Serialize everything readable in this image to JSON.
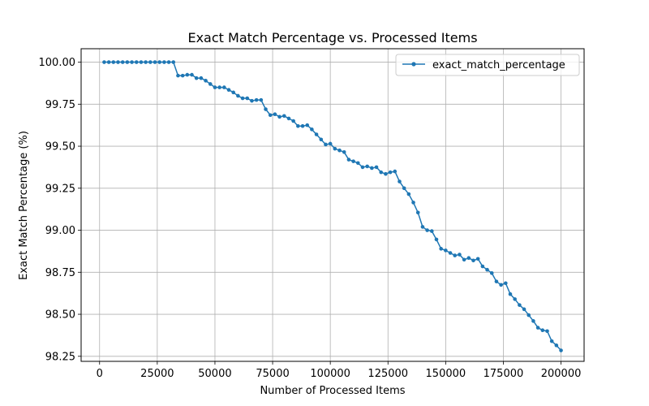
{
  "chart_data": {
    "type": "line",
    "title": "Exact Match Percentage vs. Processed Items",
    "xlabel": "Number of Processed Items",
    "ylabel": "Exact Match Percentage (%)",
    "xlim": [
      -8000,
      210000
    ],
    "ylim": [
      98.22,
      100.08
    ],
    "xticks": [
      0,
      25000,
      50000,
      75000,
      100000,
      125000,
      150000,
      175000,
      200000
    ],
    "xtick_labels": [
      "0",
      "25000",
      "50000",
      "75000",
      "100000",
      "125000",
      "150000",
      "175000",
      "200000"
    ],
    "yticks": [
      98.25,
      98.5,
      98.75,
      99.0,
      99.25,
      99.5,
      99.75,
      100.0
    ],
    "ytick_labels": [
      "98.25",
      "98.50",
      "98.75",
      "99.00",
      "99.25",
      "99.50",
      "99.75",
      "100.00"
    ],
    "grid": true,
    "legend_position": "top-right",
    "colors": {
      "series": "#1f77b4",
      "grid": "#b0b0b0",
      "axis": "#000000"
    },
    "series": [
      {
        "name": "exact_match_percentage",
        "x": [
          2000,
          4000,
          6000,
          8000,
          10000,
          12000,
          14000,
          16000,
          18000,
          20000,
          22000,
          24000,
          26000,
          28000,
          30000,
          32000,
          34000,
          36000,
          38000,
          40000,
          42000,
          44000,
          46000,
          48000,
          50000,
          52000,
          54000,
          56000,
          58000,
          60000,
          62000,
          64000,
          66000,
          68000,
          70000,
          72000,
          74000,
          76000,
          78000,
          80000,
          82000,
          84000,
          86000,
          88000,
          90000,
          92000,
          94000,
          96000,
          98000,
          100000,
          102000,
          104000,
          106000,
          108000,
          110000,
          112000,
          114000,
          116000,
          118000,
          120000,
          122000,
          124000,
          126000,
          128000,
          130000,
          132000,
          134000,
          136000,
          138000,
          140000,
          142000,
          144000,
          146000,
          148000,
          150000,
          152000,
          154000,
          156000,
          158000,
          160000,
          162000,
          164000,
          166000,
          168000,
          170000,
          172000,
          174000,
          176000,
          178000,
          180000,
          182000,
          184000,
          186000,
          188000,
          190000,
          192000,
          194000,
          196000,
          198000,
          200000
        ],
        "y": [
          100.0,
          100.0,
          100.0,
          100.0,
          100.0,
          100.0,
          100.0,
          100.0,
          100.0,
          100.0,
          100.0,
          100.0,
          100.0,
          100.0,
          100.0,
          100.0,
          99.92,
          99.92,
          99.925,
          99.925,
          99.905,
          99.905,
          99.89,
          99.87,
          99.85,
          99.85,
          99.85,
          99.835,
          99.82,
          99.8,
          99.785,
          99.785,
          99.77,
          99.775,
          99.775,
          99.72,
          99.685,
          99.69,
          99.675,
          99.68,
          99.665,
          99.65,
          99.62,
          99.62,
          99.625,
          99.6,
          99.57,
          99.54,
          99.51,
          99.515,
          99.485,
          99.475,
          99.465,
          99.42,
          99.41,
          99.4,
          99.375,
          99.38,
          99.37,
          99.375,
          99.345,
          99.335,
          99.345,
          99.35,
          99.29,
          99.25,
          99.215,
          99.165,
          99.105,
          99.02,
          99.0,
          98.995,
          98.945,
          98.89,
          98.88,
          98.865,
          98.85,
          98.855,
          98.825,
          98.835,
          98.82,
          98.83,
          98.785,
          98.765,
          98.745,
          98.695,
          98.675,
          98.685,
          98.62,
          98.59,
          98.555,
          98.53,
          98.495,
          98.46,
          98.42,
          98.405,
          98.4,
          98.34,
          98.315,
          98.285
        ]
      }
    ]
  }
}
